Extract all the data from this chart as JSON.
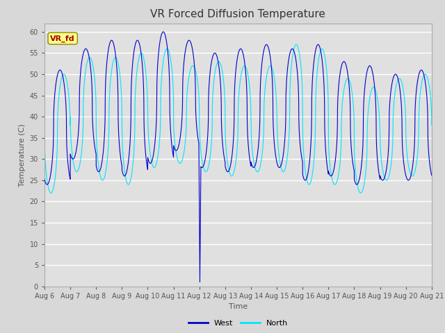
{
  "title": "VR Forced Diffusion Temperature",
  "xlabel": "Time",
  "ylabel": "Temperature (C)",
  "ylim": [
    0,
    62
  ],
  "start_day": 6,
  "end_day": 21,
  "y_ticks": [
    0,
    5,
    10,
    15,
    20,
    25,
    30,
    35,
    40,
    45,
    50,
    55,
    60
  ],
  "west_color": "#0000cc",
  "north_color": "#00e5ff",
  "bg_color": "#e0e0e0",
  "grid_color": "#ffffff",
  "label_color": "#555555",
  "annotation_label": "VR_fd",
  "annotation_bg": "#ffff88",
  "annotation_fg": "#aa0000",
  "legend_west": "West",
  "legend_north": "North",
  "title_fontsize": 11,
  "axis_fontsize": 8,
  "tick_fontsize": 7,
  "fig_bg": "#d8d8d8"
}
